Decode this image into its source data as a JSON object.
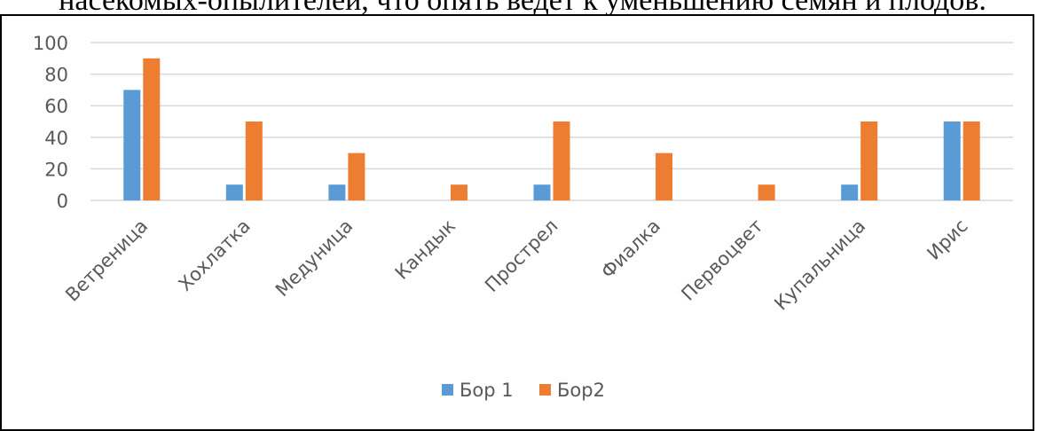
{
  "context_text": "насекомых-опылителей, что опять ведёт к уменьшению семян и плодов.",
  "chart_data": {
    "type": "bar",
    "categories": [
      "Ветреница",
      "Хохлатка",
      "Медуница",
      "Кандык",
      "Прострел",
      "Фиалка",
      "Первоцвет",
      "Купальница",
      "Ирис"
    ],
    "series": [
      {
        "name": "Бор 1",
        "values": [
          70,
          10,
          10,
          0,
          10,
          0,
          0,
          10,
          50
        ]
      },
      {
        "name": "Бор2",
        "values": [
          90,
          50,
          30,
          10,
          50,
          30,
          10,
          50,
          50
        ]
      }
    ],
    "ylim": [
      0,
      100
    ],
    "yticks": [
      0,
      20,
      40,
      60,
      80,
      100
    ],
    "grid": true,
    "legend": "bottom",
    "colors": [
      "#5B9BD5",
      "#ED7D31"
    ],
    "gridline_color": "#d9d9d9"
  }
}
